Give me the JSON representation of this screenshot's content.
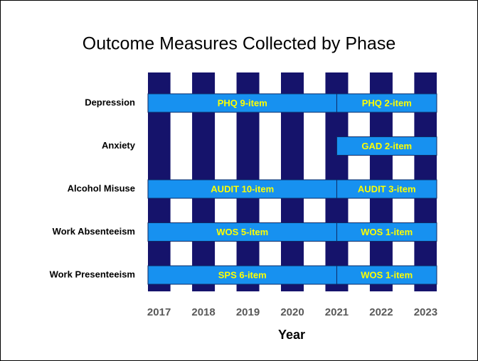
{
  "chart_data": {
    "type": "gantt",
    "title": "Outcome Measures Collected by Phase",
    "xlabel": "Year",
    "categories": [
      "Depression",
      "Anxiety",
      "Alcohol Misuse",
      "Work Absenteeism",
      "Work Presenteeism"
    ],
    "segments": [
      [
        {
          "label": "PHQ 9-item",
          "start": 2016.75,
          "end": 2021
        },
        {
          "label": "PHQ 2-item",
          "start": 2021,
          "end": 2023.25
        }
      ],
      [
        {
          "label": "GAD 2-item",
          "start": 2021,
          "end": 2023.25
        }
      ],
      [
        {
          "label": "AUDIT 10-item",
          "start": 2016.75,
          "end": 2021
        },
        {
          "label": "AUDIT 3-item",
          "start": 2021,
          "end": 2023.25
        }
      ],
      [
        {
          "label": "WOS 5-item",
          "start": 2016.75,
          "end": 2021
        },
        {
          "label": "WOS 1-item",
          "start": 2021,
          "end": 2023.25
        }
      ],
      [
        {
          "label": "SPS 6-item",
          "start": 2016.75,
          "end": 2021
        },
        {
          "label": "WOS 1-item",
          "start": 2021,
          "end": 2023.25
        }
      ]
    ],
    "xlim": [
      2016.75,
      2023.25
    ],
    "xticks": [
      2017,
      2018,
      2019,
      2020,
      2021,
      2022,
      2023
    ],
    "stripe_color": "#15136b",
    "bar_color": "#1791f0",
    "label_color": "#ffff00"
  }
}
